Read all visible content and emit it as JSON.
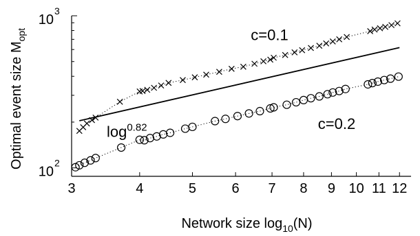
{
  "chart_data": {
    "type": "scatter",
    "xscale": "log",
    "yscale": "log",
    "xlim": [
      3,
      12.6
    ],
    "ylim": [
      88,
      1000
    ],
    "xlabel": "Network size log",
    "xlabel_sub": "10",
    "xlabel_tail": "(N)",
    "ylabel": "Optimal event size M",
    "ylabel_sub": "opt",
    "x_ticks": [
      3,
      4,
      5,
      6,
      7,
      8,
      9,
      10,
      11,
      12
    ],
    "x_tick_labels": [
      "3",
      "4",
      "5",
      "6",
      "7",
      "8",
      "9",
      "10",
      "11",
      "12"
    ],
    "y_ticks": [
      100,
      1000
    ],
    "y_tick_bases": [
      "10",
      "10"
    ],
    "y_tick_exponents": [
      "2",
      "3"
    ],
    "grid": false,
    "series": [
      {
        "name": "c=0.1",
        "marker": "x",
        "connect": "dotted",
        "x": [
          3.1,
          3.15,
          3.2,
          3.27,
          3.32,
          3.68,
          4.0,
          4.05,
          4.13,
          4.25,
          4.38,
          4.52,
          4.8,
          5.05,
          5.3,
          5.6,
          5.9,
          6.2,
          6.5,
          6.75,
          6.95,
          7.05,
          7.4,
          7.7,
          7.95,
          8.25,
          8.55,
          8.8,
          9.05,
          9.3,
          9.6,
          10.6,
          10.8,
          11.05,
          11.3,
          11.6,
          11.9
        ],
        "y": [
          175,
          185,
          196,
          206,
          214,
          272,
          318,
          320,
          326,
          336,
          348,
          362,
          378,
          394,
          410,
          428,
          448,
          462,
          484,
          502,
          515,
          530,
          552,
          575,
          594,
          614,
          635,
          658,
          678,
          700,
          725,
          792,
          812,
          828,
          845,
          868,
          892
        ]
      },
      {
        "name": "c=0.2",
        "marker": "o",
        "connect": "dotted",
        "x": [
          3.05,
          3.1,
          3.17,
          3.25,
          3.32,
          3.7,
          4.0,
          4.08,
          4.18,
          4.3,
          4.42,
          4.55,
          4.85,
          5.0,
          5.5,
          5.75,
          6.05,
          6.35,
          6.65,
          6.95,
          7.05,
          7.45,
          7.75,
          8.0,
          8.25,
          8.55,
          8.85,
          9.05,
          9.3,
          9.55,
          10.5,
          10.7,
          10.95,
          11.25,
          11.55,
          11.95
        ],
        "y": [
          101,
          104,
          108,
          112,
          116,
          136,
          153,
          152,
          157,
          161,
          166,
          170,
          181,
          186,
          203,
          210,
          219,
          228,
          236,
          246,
          250,
          260,
          270,
          279,
          287,
          295,
          305,
          313,
          320,
          330,
          354,
          361,
          369,
          378,
          386,
          398
        ]
      },
      {
        "name": "log^0.82",
        "marker": "none",
        "connect": "solid",
        "x": [
          3.1,
          12
        ],
        "y": [
          204,
          618
        ]
      }
    ],
    "annotations": [
      {
        "id": "c01",
        "text": "c=0.1",
        "at_data": [
          6.4,
          690
        ]
      },
      {
        "id": "c02",
        "text": "c=0.2",
        "at_data": [
          8.5,
          180
        ]
      },
      {
        "id": "fit",
        "text": "log",
        "sup": "0.82",
        "at_data": [
          3.48,
          160
        ]
      }
    ]
  }
}
